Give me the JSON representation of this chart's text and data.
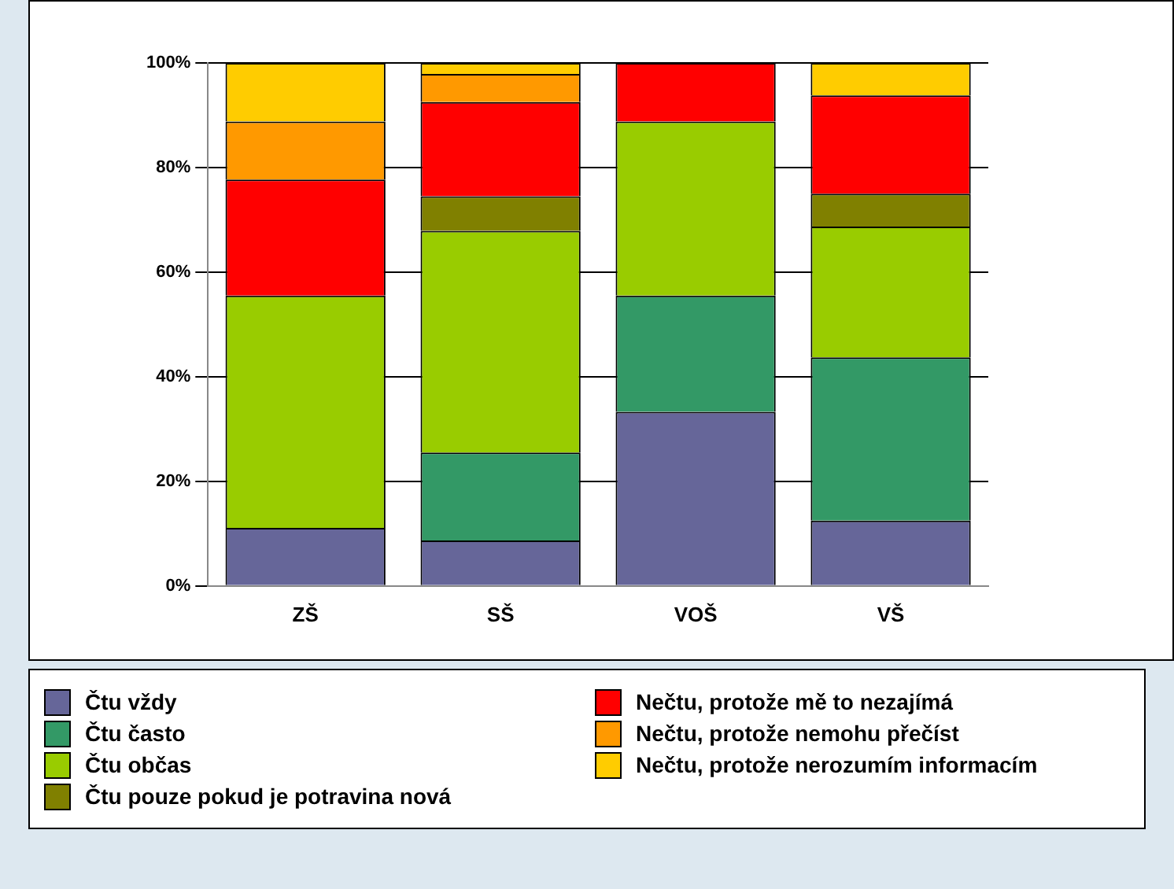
{
  "chart_data": {
    "type": "bar",
    "stacked": true,
    "categories": [
      "ZŠ",
      "SŠ",
      "VOŠ",
      "VŠ"
    ],
    "series": [
      {
        "name": "Čtu vždy",
        "color": "#666699",
        "values": [
          11.1,
          8.7,
          33.3,
          12.5
        ]
      },
      {
        "name": "Čtu často",
        "color": "#339966",
        "values": [
          0,
          16.8,
          22.2,
          31.2
        ]
      },
      {
        "name": "Čtu občas",
        "color": "#99cc00",
        "values": [
          44.4,
          42.4,
          33.3,
          25
        ]
      },
      {
        "name": "Čtu pouze pokud je potravina nová",
        "color": "#808000",
        "values": [
          0,
          6.6,
          0,
          6.3
        ]
      },
      {
        "name": "Nečtu, protože mě to nezajímá",
        "color": "#ff0000",
        "values": [
          22.2,
          18,
          11.2,
          18.8
        ]
      },
      {
        "name": "Nečtu, protože nemohu přečíst",
        "color": "#ff9900",
        "values": [
          11.1,
          5.4,
          0,
          0
        ]
      },
      {
        "name": "Nečtu, protože nerozumím informacím",
        "color": "#ffcc00",
        "values": [
          11.2,
          2.1,
          0,
          6.2
        ]
      }
    ],
    "ylim": [
      0,
      100
    ],
    "yticks": [
      {
        "value": 0,
        "label": "0%"
      },
      {
        "value": 20,
        "label": "20%"
      },
      {
        "value": 40,
        "label": "40%"
      },
      {
        "value": 60,
        "label": "60%"
      },
      {
        "value": 80,
        "label": "80%"
      },
      {
        "value": 100,
        "label": "100%"
      }
    ],
    "grid": "y",
    "legend": "bottom"
  }
}
